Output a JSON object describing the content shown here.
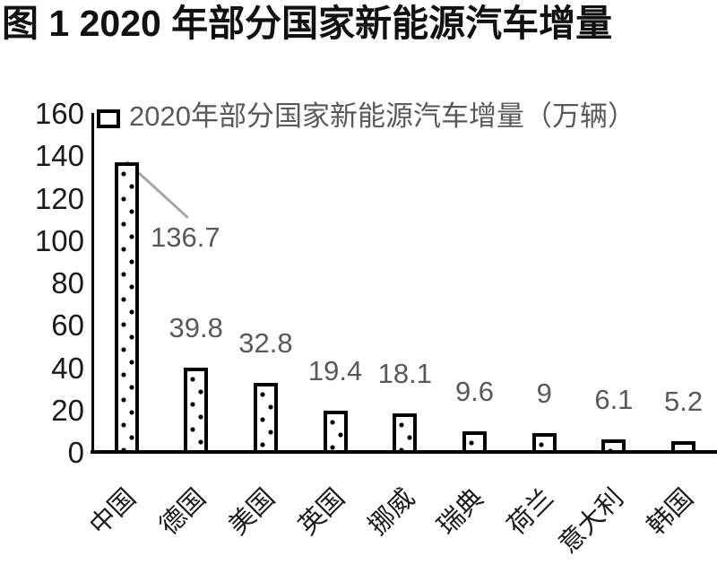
{
  "figure_title": "图 1  2020 年部分国家新能源汽车增量",
  "chart_data": {
    "type": "bar",
    "title": "图 1  2020 年部分国家新能源汽车增量",
    "legend": [
      "2020年部分国家新能源汽车增量（万辆）"
    ],
    "legend_position": "top-left-inside",
    "categories": [
      "中国",
      "德国",
      "美国",
      "英国",
      "挪威",
      "瑞典",
      "荷兰",
      "意大利",
      "韩国"
    ],
    "values": [
      136.7,
      39.8,
      32.8,
      19.4,
      18.1,
      9.6,
      9,
      6.1,
      5.2
    ],
    "value_labels": [
      "136.7",
      "39.8",
      "32.8",
      "19.4",
      "18.1",
      "9.6",
      "9",
      "6.1",
      "5.2"
    ],
    "unit": "万辆",
    "ylim": [
      0,
      160
    ],
    "yticks": [
      0,
      20,
      40,
      60,
      80,
      100,
      120,
      140,
      160
    ],
    "grid": false,
    "annotation": {
      "target": "中国",
      "label": "136.7",
      "style": "gray-leader-line"
    },
    "colors": {
      "bar_fill": "#ffffff",
      "bar_pattern": "black-dots",
      "bar_border": "#000000",
      "axis": "#000000",
      "tick_label": "#1a1a1a",
      "value_label": "#595959",
      "legend_text": "#595959",
      "leader_line": "#a6a6a6",
      "title": "#111111",
      "background": "#ffffff"
    }
  }
}
